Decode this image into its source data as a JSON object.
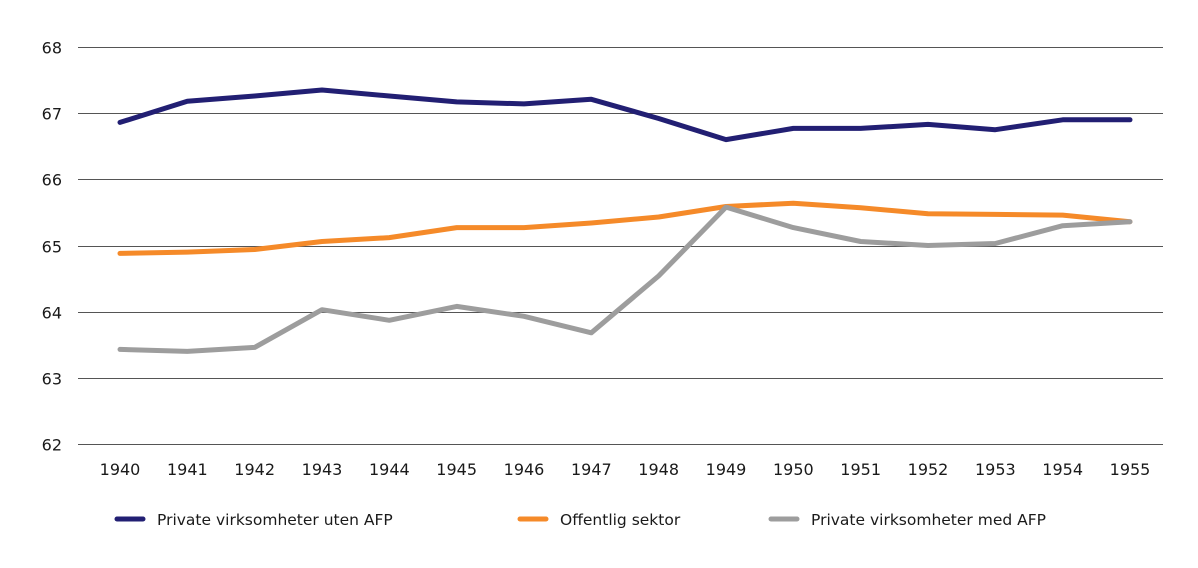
{
  "chart_data": {
    "type": "line",
    "title": "",
    "xlabel": "",
    "ylabel": "",
    "x": [
      "1940",
      "1941",
      "1942",
      "1943",
      "1944",
      "1945",
      "1946",
      "1947",
      "1948",
      "1949",
      "1950",
      "1951",
      "1952",
      "1953",
      "1954",
      "1955"
    ],
    "ylim": [
      62,
      68
    ],
    "yticks": [
      62,
      63,
      64,
      65,
      66,
      67,
      68
    ],
    "ytick_labels": [
      "62",
      "63",
      "64",
      "65",
      "66",
      "67",
      "68"
    ],
    "grid": true,
    "legend_position": "bottom",
    "series": [
      {
        "name": "Private virksomheter uten AFP",
        "color": "#221f73",
        "values": [
          66.86,
          67.18,
          67.26,
          67.35,
          67.26,
          67.17,
          67.14,
          67.21,
          66.92,
          66.6,
          66.77,
          66.77,
          66.83,
          66.75,
          66.9,
          66.9
        ]
      },
      {
        "name": "Offentlig sektor",
        "color": "#f58a29",
        "values": [
          64.88,
          64.9,
          64.94,
          65.06,
          65.12,
          65.27,
          65.27,
          65.34,
          65.43,
          65.59,
          65.64,
          65.57,
          65.48,
          65.47,
          65.46,
          65.36
        ]
      },
      {
        "name": "Private virksomheter med AFP",
        "color": "#9d9d9d",
        "values": [
          63.43,
          63.4,
          63.46,
          64.03,
          63.87,
          64.08,
          63.93,
          63.68,
          64.54,
          65.58,
          65.27,
          65.06,
          65.0,
          65.03,
          65.3,
          65.36
        ]
      }
    ],
    "gridline_color": "#555555"
  }
}
